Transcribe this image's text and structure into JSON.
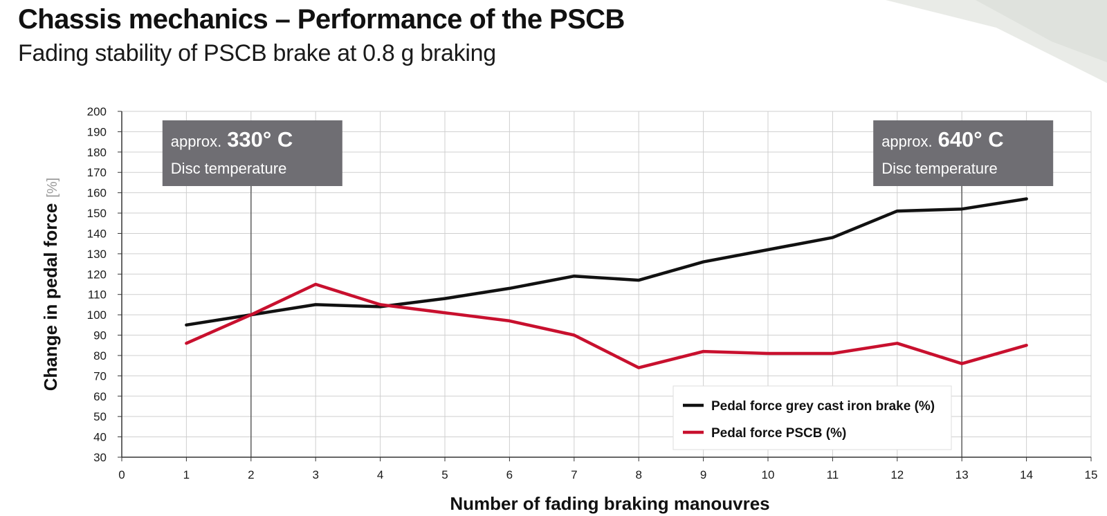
{
  "header": {
    "title": "Chassis mechanics – Performance of the PSCB",
    "subtitle": "Fading stability of PSCB brake at 0.8 g braking"
  },
  "colors": {
    "grey_cast_iron": "#111111",
    "pscb": "#c8102e",
    "annotation_box": "#6f6e73",
    "grid": "#cfcfcf"
  },
  "chart_data": {
    "type": "line",
    "xlabel": "Number of fading braking manouvres",
    "ylabel": "Change in pedal force",
    "ylabel_unit": "[%]",
    "xlim": [
      0,
      15
    ],
    "ylim": [
      30,
      200
    ],
    "xticks": [
      0,
      1,
      2,
      3,
      4,
      5,
      6,
      7,
      8,
      9,
      10,
      11,
      12,
      13,
      14,
      15
    ],
    "yticks": [
      30,
      40,
      50,
      60,
      70,
      80,
      90,
      100,
      110,
      120,
      130,
      140,
      150,
      160,
      170,
      180,
      190,
      200
    ],
    "grid": true,
    "legend_position": "bottom-right",
    "x": [
      1,
      2,
      3,
      4,
      5,
      6,
      7,
      8,
      9,
      10,
      11,
      12,
      13,
      14
    ],
    "series": [
      {
        "name": "Pedal force grey cast iron brake (%)",
        "color": "#111111",
        "values": [
          95,
          100,
          105,
          104,
          108,
          113,
          119,
          117,
          126,
          132,
          138,
          151,
          152,
          157
        ]
      },
      {
        "name": "Pedal force PSCB (%)",
        "color": "#c8102e",
        "values": [
          86,
          100,
          115,
          105,
          101,
          97,
          90,
          74,
          82,
          81,
          81,
          86,
          76,
          85
        ]
      }
    ],
    "annotations": [
      {
        "x": 2,
        "prefix": "approx.",
        "value": "330° C",
        "label": "Disc temperature"
      },
      {
        "x": 13,
        "prefix": "approx.",
        "value": "640° C",
        "label": "Disc temperature"
      }
    ]
  }
}
